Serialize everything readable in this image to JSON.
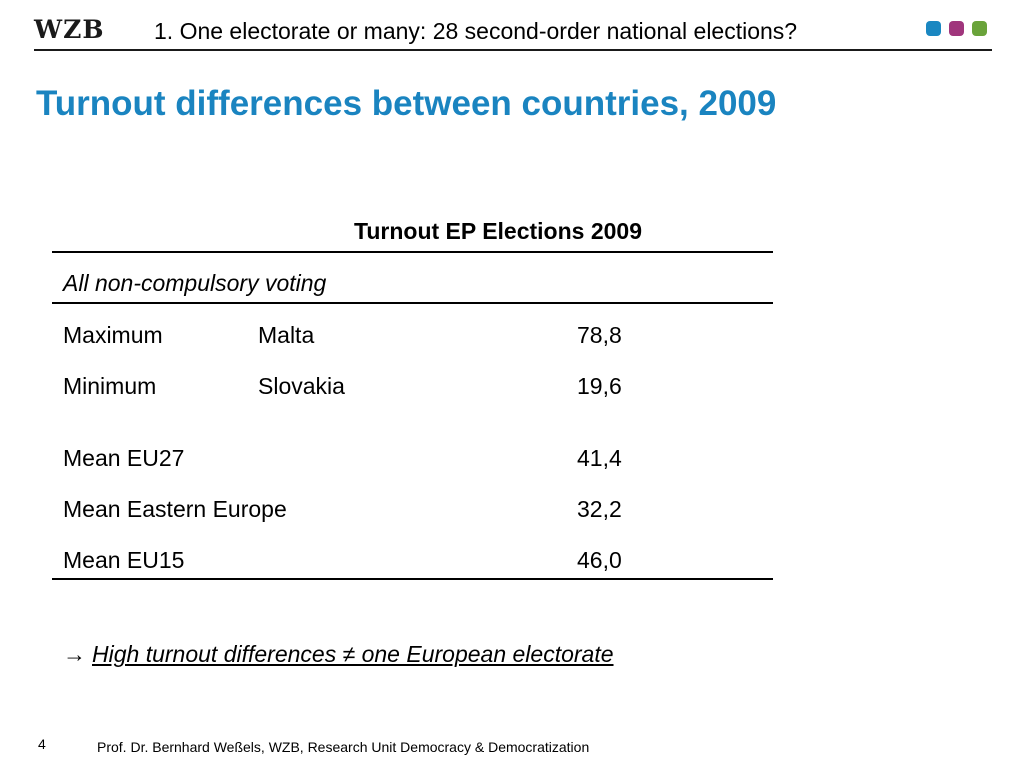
{
  "header": {
    "logo_text": "WZB",
    "title": "1. One electorate or many: 28 second-order national elections?",
    "dot_colors": [
      "#1a87c1",
      "#a0357c",
      "#6aa33a"
    ],
    "rule_color": "#1a1a1a"
  },
  "slide": {
    "title": "Turnout differences between countries, 2009",
    "title_color": "#1a84c0"
  },
  "table": {
    "column_header": "Turnout EP Elections 2009",
    "section_label": "All non-compulsory voting",
    "rows": [
      {
        "label": "Maximum",
        "country": "Malta",
        "value": "78,8"
      },
      {
        "label": "Minimum",
        "country": "Slovakia",
        "value": "19,6"
      },
      {
        "label": "Mean EU27",
        "country": "",
        "value": "41,4"
      },
      {
        "label": "Mean Eastern Europe",
        "country": "",
        "value": "32,2"
      },
      {
        "label": "Mean EU15",
        "country": "",
        "value": "46,0"
      }
    ]
  },
  "conclusion": {
    "arrow": "→",
    "text": "High turnout differences  ≠  one European electorate"
  },
  "footer": {
    "page_number": "4",
    "text": "Prof. Dr. Bernhard Weßels, WZB, Research Unit Democracy & Democratization"
  }
}
